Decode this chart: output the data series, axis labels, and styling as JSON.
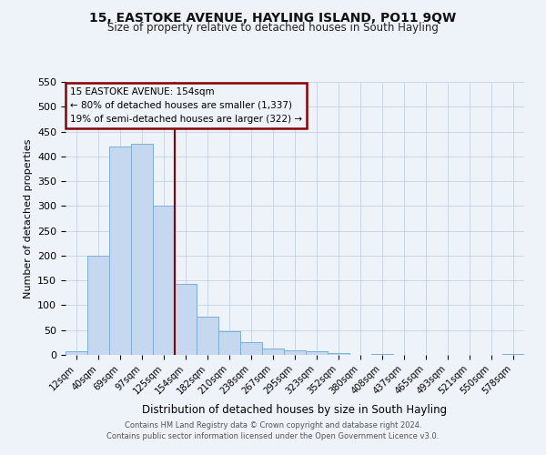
{
  "title": "15, EASTOKE AVENUE, HAYLING ISLAND, PO11 9QW",
  "subtitle": "Size of property relative to detached houses in South Hayling",
  "xlabel": "Distribution of detached houses by size in South Hayling",
  "ylabel": "Number of detached properties",
  "bar_labels": [
    "12sqm",
    "40sqm",
    "69sqm",
    "97sqm",
    "125sqm",
    "154sqm",
    "182sqm",
    "210sqm",
    "238sqm",
    "267sqm",
    "295sqm",
    "323sqm",
    "352sqm",
    "380sqm",
    "408sqm",
    "437sqm",
    "465sqm",
    "493sqm",
    "521sqm",
    "550sqm",
    "578sqm"
  ],
  "bar_values": [
    8,
    200,
    420,
    425,
    300,
    143,
    77,
    48,
    25,
    13,
    9,
    8,
    3,
    0,
    2,
    0,
    0,
    0,
    0,
    0,
    1
  ],
  "bar_color": "#c5d8ef",
  "bar_edge_color": "#7aafd4",
  "vline_x": 4.5,
  "vline_color": "#8b0000",
  "annotation_title": "15 EASTOKE AVENUE: 154sqm",
  "annotation_line1": "← 80% of detached houses are smaller (1,337)",
  "annotation_line2": "19% of semi-detached houses are larger (322) →",
  "annotation_box_color": "#8b0000",
  "ylim": [
    0,
    550
  ],
  "yticks": [
    0,
    50,
    100,
    150,
    200,
    250,
    300,
    350,
    400,
    450,
    500,
    550
  ],
  "footnote1": "Contains HM Land Registry data © Crown copyright and database right 2024.",
  "footnote2": "Contains public sector information licensed under the Open Government Licence v3.0.",
  "bg_color": "#eef2f9",
  "grid_color": "#c5d2e0"
}
